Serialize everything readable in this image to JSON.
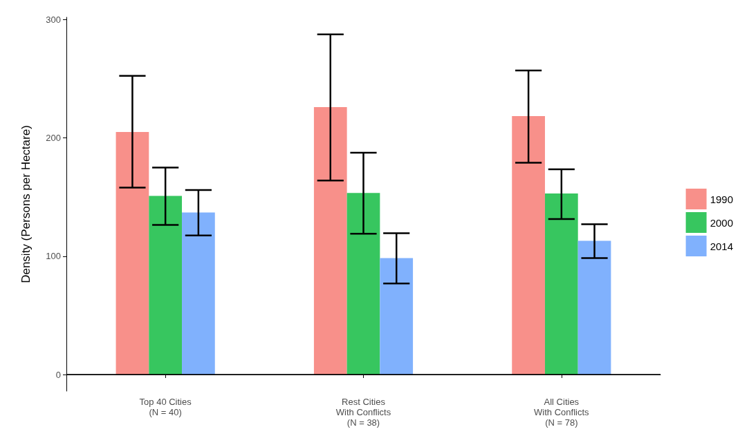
{
  "chart_data": {
    "type": "bar",
    "ylabel": "Density (Persons per Hectare)",
    "categories": [
      "Top 40 Cities\n(N = 40)",
      "Rest Cities\nWith Conflicts\n(N = 38)",
      "All Cities\nWith Conflicts\n(N = 78)"
    ],
    "series": [
      {
        "name": "1990",
        "color": "#f8908a",
        "values": [
          205,
          226,
          218.5
        ],
        "errors": [
          [
            158,
            252.5
          ],
          [
            164,
            287.5
          ],
          [
            179,
            257
          ]
        ]
      },
      {
        "name": "2000",
        "color": "#37c65f",
        "values": [
          151,
          153.5,
          153
        ],
        "errors": [
          [
            126.5,
            175
          ],
          [
            119,
            187.5
          ],
          [
            131.5,
            173.5
          ]
        ]
      },
      {
        "name": "2014",
        "color": "#80b1fd",
        "values": [
          137,
          98.5,
          113
        ],
        "errors": [
          [
            117.5,
            156
          ],
          [
            77,
            119.5
          ],
          [
            98.5,
            127
          ]
        ]
      }
    ],
    "ylim": [
      -14,
      302
    ],
    "yticks": [
      0,
      100,
      200,
      300
    ],
    "grid": false,
    "legend": "right",
    "ref_lines": [
      {
        "axis": "y",
        "value": 0
      }
    ]
  }
}
